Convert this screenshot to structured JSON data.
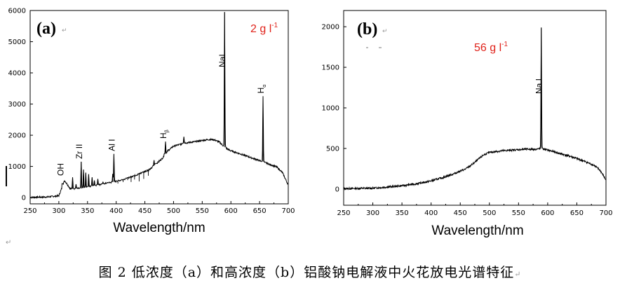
{
  "chart_data": [
    {
      "type": "line",
      "panel_label": "(a)",
      "concentration_label": "2 g l",
      "concentration_exp": "-1",
      "title": "",
      "xlabel": "Wavelength/nm",
      "ylabel": "",
      "xlim": [
        250,
        700
      ],
      "ylim": [
        -200,
        6000
      ],
      "x_ticks": [
        250,
        300,
        350,
        400,
        450,
        500,
        550,
        600,
        650,
        700
      ],
      "y_ticks": [
        0,
        1000,
        2000,
        3000,
        4000,
        5000,
        6000
      ],
      "baseline": [
        [
          250,
          10
        ],
        [
          280,
          20
        ],
        [
          300,
          60
        ],
        [
          305,
          300
        ],
        [
          310,
          550
        ],
        [
          315,
          420
        ],
        [
          320,
          280
        ],
        [
          340,
          300
        ],
        [
          360,
          380
        ],
        [
          380,
          450
        ],
        [
          400,
          520
        ],
        [
          420,
          620
        ],
        [
          440,
          760
        ],
        [
          460,
          920
        ],
        [
          480,
          1250
        ],
        [
          490,
          1500
        ],
        [
          500,
          1650
        ],
        [
          520,
          1750
        ],
        [
          540,
          1800
        ],
        [
          560,
          1860
        ],
        [
          570,
          1860
        ],
        [
          580,
          1780
        ],
        [
          590,
          1600
        ],
        [
          600,
          1500
        ],
        [
          620,
          1380
        ],
        [
          640,
          1250
        ],
        [
          660,
          1120
        ],
        [
          680,
          980
        ],
        [
          690,
          800
        ],
        [
          700,
          400
        ]
      ],
      "peaks": [
        [
          308,
          420
        ],
        [
          324,
          650
        ],
        [
          330,
          430
        ],
        [
          339,
          1150
        ],
        [
          343,
          900
        ],
        [
          347,
          800
        ],
        [
          352,
          750
        ],
        [
          358,
          650
        ],
        [
          362,
          550
        ],
        [
          368,
          600
        ],
        [
          377,
          500
        ],
        [
          386,
          480
        ],
        [
          394,
          760
        ],
        [
          396,
          1400
        ],
        [
          403,
          450
        ],
        [
          412,
          500
        ],
        [
          420,
          560
        ],
        [
          426,
          500
        ],
        [
          432,
          580
        ],
        [
          440,
          520
        ],
        [
          448,
          600
        ],
        [
          456,
          700
        ],
        [
          466,
          1200
        ],
        [
          470,
          1100
        ],
        [
          486,
          1800
        ],
        [
          518,
          1950
        ],
        [
          589,
          5950
        ],
        [
          656,
          3250
        ]
      ],
      "annotations": [
        {
          "text": "OH",
          "x": 307
        },
        {
          "text": "Zr II",
          "x": 339
        },
        {
          "text": "Al I",
          "x": 396
        },
        {
          "text": "H",
          "sub": "β",
          "x": 486
        },
        {
          "text": "NaI",
          "x": 589
        },
        {
          "text": "H",
          "sub": "α",
          "x": 656
        }
      ]
    },
    {
      "type": "line",
      "panel_label": "(b)",
      "concentration_label": "56 g l",
      "concentration_exp": "-1",
      "title": "",
      "xlabel": "Wavelength/nm",
      "ylabel": "",
      "xlim": [
        250,
        700
      ],
      "ylim": [
        -200,
        2200
      ],
      "x_ticks": [
        250,
        300,
        350,
        400,
        450,
        500,
        550,
        600,
        650,
        700
      ],
      "y_ticks": [
        0,
        500,
        1000,
        1500,
        2000
      ],
      "baseline": [
        [
          250,
          5
        ],
        [
          300,
          10
        ],
        [
          350,
          40
        ],
        [
          380,
          70
        ],
        [
          400,
          100
        ],
        [
          420,
          140
        ],
        [
          440,
          190
        ],
        [
          460,
          250
        ],
        [
          470,
          300
        ],
        [
          480,
          360
        ],
        [
          490,
          420
        ],
        [
          500,
          450
        ],
        [
          520,
          470
        ],
        [
          540,
          480
        ],
        [
          560,
          490
        ],
        [
          580,
          490
        ],
        [
          590,
          500
        ],
        [
          600,
          480
        ],
        [
          620,
          440
        ],
        [
          640,
          400
        ],
        [
          660,
          350
        ],
        [
          680,
          290
        ],
        [
          690,
          230
        ],
        [
          700,
          110
        ]
      ],
      "peaks": [
        [
          589,
          1990
        ]
      ],
      "annotations": [
        {
          "text": "Na I",
          "x": 589
        }
      ]
    }
  ],
  "caption": "图 2  低浓度（a）和高浓度（b）铝酸钠电解液中火花放电光谱特征",
  "paragraph_marks": [
    "↵",
    "↵",
    "↵",
    "↵"
  ]
}
